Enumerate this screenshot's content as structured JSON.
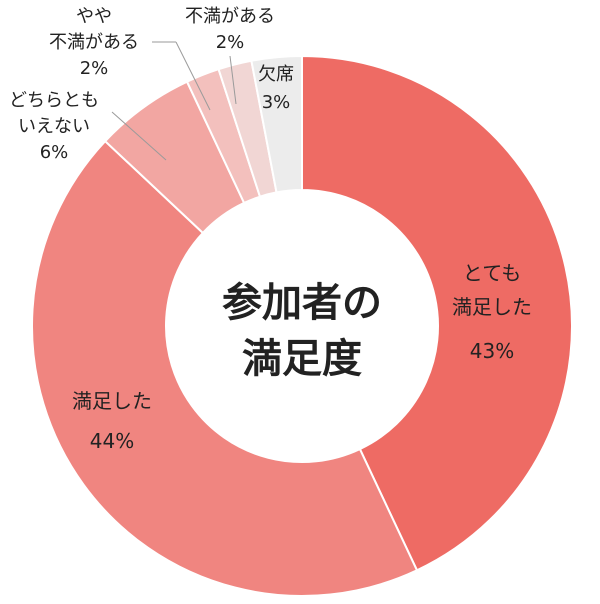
{
  "chart_data": {
    "type": "pie",
    "title_lines": [
      "参加者の",
      "満足度"
    ],
    "slices": [
      {
        "label_lines": [
          "とても",
          "満足した"
        ],
        "value": 43,
        "value_label": "43%",
        "color": "#ee6b64"
      },
      {
        "label_lines": [
          "満足した"
        ],
        "value": 44,
        "value_label": "44%",
        "color": "#f08580"
      },
      {
        "label_lines": [
          "どちらとも",
          "いえない"
        ],
        "value": 6,
        "value_label": "6%",
        "color": "#f2a6a2"
      },
      {
        "label_lines": [
          "やや",
          "不満がある"
        ],
        "value": 2,
        "value_label": "2%",
        "color": "#f3c0bd"
      },
      {
        "label_lines": [
          "不満がある"
        ],
        "value": 2,
        "value_label": "2%",
        "color": "#f1d6d4"
      },
      {
        "label_lines": [
          "欠席"
        ],
        "value": 3,
        "value_label": "3%",
        "color": "#ececec"
      }
    ]
  }
}
